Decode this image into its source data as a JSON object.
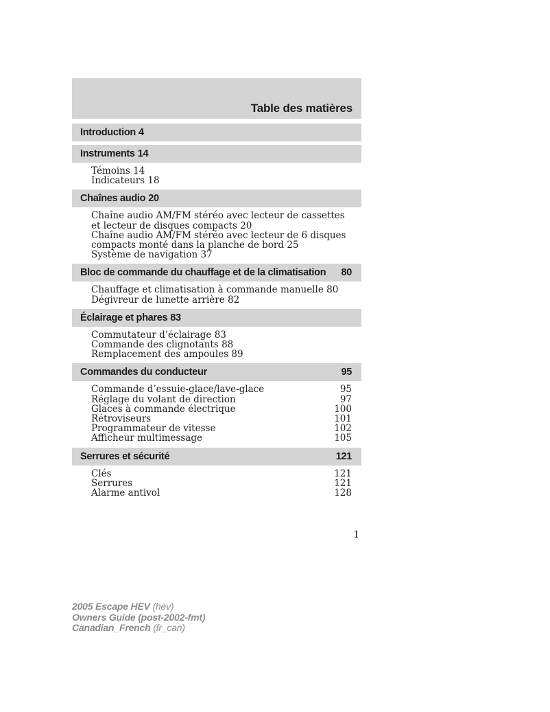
{
  "page": {
    "title": "Table des matières",
    "folio": "1"
  },
  "colors": {
    "bar_background": "#d4d4d4",
    "text": "#1c1c1c",
    "footer_text": "#8c8c8c",
    "page_background": "#ffffff"
  },
  "sections": [
    {
      "title": "Introduction",
      "page": "4",
      "page_style": "inline",
      "items": []
    },
    {
      "title": "Instruments",
      "page": "14",
      "page_style": "inline",
      "items": [
        {
          "label": "Témoins",
          "page": "14",
          "page_style": "inline"
        },
        {
          "label": "Indicateurs",
          "page": "18",
          "page_style": "inline"
        }
      ]
    },
    {
      "title": "Chaînes audio",
      "page": "20",
      "page_style": "inline",
      "items": [
        {
          "label": "Chaîne audio AM/FM stéréo avec lecteur de cassettes et lecteur de disques compacts",
          "page": "20",
          "page_style": "inline"
        },
        {
          "label": "Chaîne audio AM/FM stéréo avec lecteur de 6 disques compacts monté dans la planche de bord",
          "page": "25",
          "page_style": "inline"
        },
        {
          "label": "Système de navigation",
          "page": "37",
          "page_style": "inline"
        }
      ]
    },
    {
      "title": "Bloc de commande du chauffage et de la climatisation",
      "page": "80",
      "page_style": "right",
      "items": [
        {
          "label": "Chauffage et climatisation à commande manuelle",
          "page": "80",
          "page_style": "inline"
        },
        {
          "label": "Dégivreur de lunette arrière",
          "page": "82",
          "page_style": "inline"
        }
      ]
    },
    {
      "title": "Éclairage et phares",
      "page": "83",
      "page_style": "inline",
      "items": [
        {
          "label": "Commutateur d’éclairage",
          "page": "83",
          "page_style": "inline"
        },
        {
          "label": "Commande des clignotants",
          "page": "88",
          "page_style": "inline"
        },
        {
          "label": "Remplacement des ampoules",
          "page": "89",
          "page_style": "inline"
        }
      ]
    },
    {
      "title": "Commandes du conducteur",
      "page": "95",
      "page_style": "right",
      "items": [
        {
          "label": "Commande d’essuie-glace/lave-glace",
          "page": "95",
          "page_style": "right"
        },
        {
          "label": "Réglage du volant de direction",
          "page": "97",
          "page_style": "right"
        },
        {
          "label": "Glaces à commande électrique",
          "page": "100",
          "page_style": "right"
        },
        {
          "label": "Rétroviseurs",
          "page": "101",
          "page_style": "right"
        },
        {
          "label": "Programmateur de vitesse",
          "page": "102",
          "page_style": "right"
        },
        {
          "label": "Afficheur multimessage",
          "page": "105",
          "page_style": "right"
        }
      ]
    },
    {
      "title": "Serrures et sécurité",
      "page": "121",
      "page_style": "right",
      "items": [
        {
          "label": "Clés",
          "page": "121",
          "page_style": "right"
        },
        {
          "label": "Serrures",
          "page": "121",
          "page_style": "right"
        },
        {
          "label": "Alarme antivol",
          "page": "128",
          "page_style": "right"
        }
      ]
    }
  ],
  "footer": {
    "lines": [
      {
        "bold": "2005 Escape HEV",
        "regular": "(hev)"
      },
      {
        "bold": "Owners Guide (post-2002-fmt)",
        "regular": ""
      },
      {
        "bold": "Canadian_French",
        "regular": "(fr_can)"
      }
    ]
  }
}
